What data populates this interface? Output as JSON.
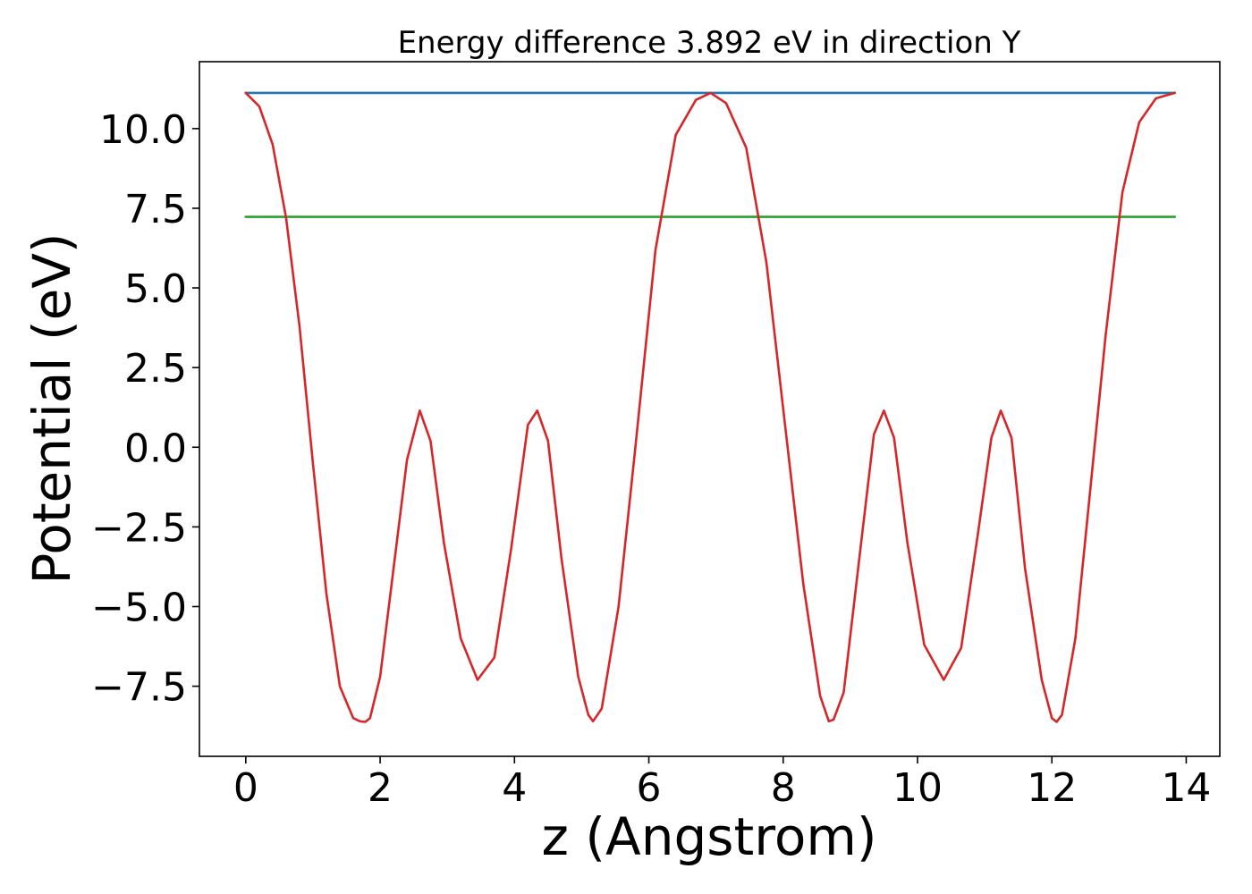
{
  "chart_data": {
    "type": "line",
    "title": "Energy difference 3.892 eV in direction Y",
    "xlabel": "z (Angstrom)",
    "ylabel": "Potential (eV)",
    "xlim": [
      -0.69,
      14.5
    ],
    "ylim": [
      -9.7,
      12.1
    ],
    "xticks": [
      0,
      2,
      4,
      6,
      8,
      10,
      12,
      14
    ],
    "xtick_labels": [
      "0",
      "2",
      "4",
      "6",
      "8",
      "10",
      "12",
      "14"
    ],
    "yticks": [
      -7.5,
      -5.0,
      -2.5,
      0.0,
      2.5,
      5.0,
      7.5,
      10.0
    ],
    "ytick_labels": [
      "−7.5",
      "−5.0",
      "−2.5",
      "0.0",
      "2.5",
      "5.0",
      "7.5",
      "10.0"
    ],
    "grid": false,
    "series": [
      {
        "color": "#1f77b4",
        "x": [
          0,
          13.83
        ],
        "y": [
          11.12,
          11.12
        ]
      },
      {
        "color": "#2ca02c",
        "x": [
          0,
          13.83
        ],
        "y": [
          7.23,
          7.23
        ]
      },
      {
        "color": "#d62728",
        "x": [
          0.0,
          0.2,
          0.4,
          0.6,
          0.8,
          1.0,
          1.2,
          1.4,
          1.6,
          1.7,
          1.78,
          1.85,
          2.0,
          2.2,
          2.4,
          2.59,
          2.75,
          2.95,
          3.2,
          3.45,
          3.7,
          3.95,
          4.2,
          4.34,
          4.5,
          4.7,
          4.95,
          5.1,
          5.17,
          5.3,
          5.55,
          5.8,
          6.1,
          6.4,
          6.7,
          6.92,
          7.15,
          7.45,
          7.75,
          8.05,
          8.3,
          8.55,
          8.68,
          8.75,
          8.9,
          9.15,
          9.35,
          9.5,
          9.65,
          9.85,
          10.1,
          10.39,
          10.65,
          10.9,
          11.1,
          11.24,
          11.4,
          11.6,
          11.85,
          12.0,
          12.07,
          12.15,
          12.35,
          12.55,
          12.8,
          13.05,
          13.3,
          13.55,
          13.83
        ],
        "y": [
          11.12,
          10.7,
          9.5,
          7.2,
          3.8,
          -0.5,
          -4.6,
          -7.5,
          -8.5,
          -8.6,
          -8.62,
          -8.5,
          -7.2,
          -3.8,
          -0.4,
          1.15,
          0.2,
          -3.0,
          -6.0,
          -7.3,
          -6.6,
          -3.2,
          0.7,
          1.15,
          0.2,
          -3.5,
          -7.2,
          -8.4,
          -8.6,
          -8.2,
          -5.0,
          0.0,
          6.2,
          9.8,
          10.9,
          11.12,
          10.8,
          9.4,
          5.8,
          0.3,
          -4.3,
          -7.8,
          -8.6,
          -8.55,
          -7.7,
          -3.2,
          0.4,
          1.15,
          0.3,
          -3.0,
          -6.2,
          -7.3,
          -6.3,
          -2.7,
          0.3,
          1.15,
          0.3,
          -3.8,
          -7.3,
          -8.5,
          -8.62,
          -8.4,
          -6.0,
          -1.8,
          3.5,
          8.0,
          10.2,
          10.95,
          11.12
        ]
      }
    ]
  }
}
